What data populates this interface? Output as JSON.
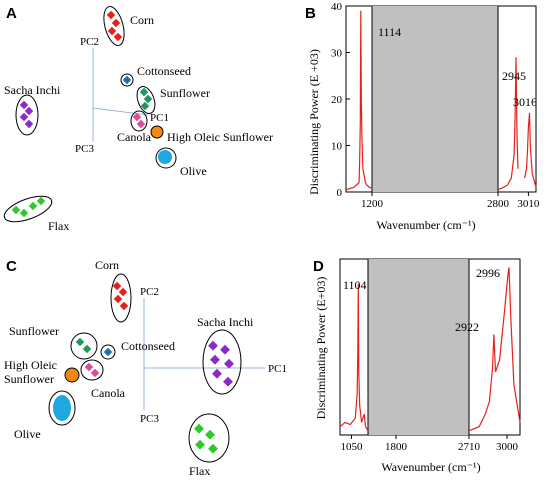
{
  "panels": {
    "A": {
      "letter": "A",
      "axis_labels": {
        "pc1": "PC1",
        "pc2": "PC2",
        "pc3": "PC3"
      },
      "groups": [
        {
          "name": "Corn",
          "color": "#e8201c"
        },
        {
          "name": "Cottonseed",
          "color": "#1a6fb4"
        },
        {
          "name": "Sunflower",
          "color": "#1a9a5a"
        },
        {
          "name": "Canola",
          "color": "#e0489a"
        },
        {
          "name": "High Oleic Sunflower",
          "color": "#f08a14"
        },
        {
          "name": "Olive",
          "color": "#1fa8e0"
        },
        {
          "name": "Sacha Inchi",
          "color": "#8a2ac8"
        },
        {
          "name": "Flax",
          "color": "#2ec82a"
        }
      ]
    },
    "B": {
      "letter": "B",
      "ylabel": "Discriminating Power (E +03)",
      "xlabel": "Wavenumber (cm⁻¹)",
      "yticks": [
        "0",
        "10",
        "20",
        "30",
        "40"
      ],
      "xticks": [
        "1200",
        "2800",
        "3010"
      ],
      "annotations": [
        "1114",
        "2945",
        "3016"
      ]
    },
    "C": {
      "letter": "C",
      "axis_labels": {
        "pc1": "PC1",
        "pc2": "PC2",
        "pc3": "PC3"
      },
      "groups": [
        {
          "name": "Corn",
          "color": "#e8201c"
        },
        {
          "name": "Sacha Inchi",
          "color": "#8a2ac8"
        },
        {
          "name": "Sunflower",
          "color": "#1a9a5a"
        },
        {
          "name": "Cottonseed",
          "color": "#1a6fb4"
        },
        {
          "name": "High Oleic Sunflower",
          "color": "#f08a14"
        },
        {
          "name": "Canola",
          "color": "#e0489a"
        },
        {
          "name": "Olive",
          "color": "#1fa8e0"
        },
        {
          "name": "Flax",
          "color": "#2ec82a"
        }
      ],
      "multiline_labels": {
        "high_oleic_1": "High Oleic",
        "high_oleic_2": "Sunflower"
      }
    },
    "D": {
      "letter": "D",
      "ylabel": "Discriminating Power (E+03)",
      "xlabel": "Wavenumber (cm⁻¹)",
      "xticks": [
        "1050",
        "1800",
        "2710",
        "3000"
      ],
      "annotations": [
        "1104",
        "2996",
        "2922"
      ]
    }
  },
  "chart_data": [
    {
      "type": "scatter",
      "panel": "A",
      "title": "",
      "series": [
        {
          "name": "Corn",
          "color": "#e8201c",
          "x": [
            0.12,
            0.2,
            0.1
          ],
          "y": [
            1.45,
            1.36,
            1.28
          ]
        },
        {
          "name": "Cottonseed",
          "color": "#1a6fb4",
          "x": [
            0.45
          ],
          "y": [
            0.85
          ]
        },
        {
          "name": "Sunflower",
          "color": "#1a9a5a",
          "x": [
            0.6,
            0.65,
            0.62,
            0.7
          ],
          "y": [
            0.62,
            0.58,
            0.5,
            0.46
          ]
        },
        {
          "name": "Canola",
          "color": "#e0489a",
          "x": [
            0.45,
            0.5,
            0.46
          ],
          "y": [
            0.3,
            0.25,
            0.22
          ]
        },
        {
          "name": "High Oleic Sunflower",
          "color": "#f08a14",
          "x": [
            0.75
          ],
          "y": [
            0.08
          ]
        },
        {
          "name": "Olive",
          "color": "#1fa8e0",
          "x": [
            0.85,
            0.9
          ],
          "y": [
            -0.22,
            -0.25
          ]
        },
        {
          "name": "Sacha Inchi",
          "color": "#8a2ac8",
          "x": [
            -1.5,
            -1.45,
            -1.55,
            -1.48
          ],
          "y": [
            0.45,
            0.4,
            0.35,
            0.3
          ]
        },
        {
          "name": "Flax",
          "color": "#2ec82a",
          "x": [
            -1.4,
            -1.2,
            -1.3,
            -1.0
          ],
          "y": [
            -0.95,
            -0.9,
            -1.0,
            -0.88
          ]
        }
      ]
    },
    {
      "type": "line",
      "panel": "B",
      "xlabel": "Wavenumber (cm⁻¹)",
      "ylabel": "Discriminating Power (E +03)",
      "ylim": [
        0,
        40
      ],
      "segments": [
        {
          "x": [
            1000,
            1060,
            1100,
            1105,
            1110,
            1114,
            1118,
            1122,
            1130,
            1150,
            1160,
            1180,
            1200
          ],
          "y": [
            0.5,
            1,
            2,
            6,
            15,
            39,
            20,
            12,
            5,
            2,
            1.5,
            1,
            0.8
          ]
        },
        {
          "x": [
            2850,
            2880,
            2900,
            2920,
            2935,
            2940,
            2945,
            2950,
            2955
          ],
          "y": [
            0.5,
            1,
            1.5,
            3,
            8,
            16,
            29,
            12,
            5
          ]
        },
        {
          "x": [
            2990,
            3000,
            3005,
            3010,
            3016,
            3020,
            3030,
            3050
          ],
          "y": [
            3,
            5,
            9,
            14,
            17,
            10,
            4,
            1
          ]
        }
      ],
      "shaded_gap": [
        1200,
        2850
      ],
      "peaks": [
        {
          "x": 1114,
          "y": 39
        },
        {
          "x": 2945,
          "y": 29
        },
        {
          "x": 3016,
          "y": 17
        }
      ]
    },
    {
      "type": "scatter",
      "panel": "C",
      "title": "",
      "series": [
        {
          "name": "Corn",
          "color": "#e8201c",
          "x": [
            -0.3,
            -0.22,
            -0.26
          ],
          "y": [
            1.1,
            1.0,
            0.9
          ]
        },
        {
          "name": "Sacha Inchi",
          "color": "#8a2ac8",
          "x": [
            1.1,
            1.2,
            1.15,
            1.25
          ],
          "y": [
            0.3,
            0.2,
            0.1,
            0.0
          ]
        },
        {
          "name": "Sunflower",
          "color": "#1a9a5a",
          "x": [
            -0.9,
            -0.85
          ],
          "y": [
            0.25,
            0.2
          ]
        },
        {
          "name": "Cottonseed",
          "color": "#1a6fb4",
          "x": [
            -0.6
          ],
          "y": [
            0.2
          ]
        },
        {
          "name": "High Oleic Sunflower",
          "color": "#f08a14",
          "x": [
            -1.1
          ],
          "y": [
            0.0
          ]
        },
        {
          "name": "Canola",
          "color": "#e0489a",
          "x": [
            -0.8,
            -0.75
          ],
          "y": [
            0.05,
            0.0
          ]
        },
        {
          "name": "Olive",
          "color": "#1fa8e0",
          "x": [
            -1.2,
            -1.15
          ],
          "y": [
            -0.3,
            -0.35
          ]
        },
        {
          "name": "Flax",
          "color": "#2ec82a",
          "x": [
            1.1,
            1.2,
            1.15
          ],
          "y": [
            -0.7,
            -0.75,
            -0.8
          ]
        }
      ]
    },
    {
      "type": "line",
      "panel": "D",
      "xlabel": "Wavenumber (cm⁻¹)",
      "ylabel": "Discriminating Power (E+03)",
      "segments": [
        {
          "x": [
            960,
            1000,
            1040,
            1080,
            1095,
            1100,
            1104,
            1108,
            1115,
            1130,
            1150,
            1160,
            1180
          ],
          "y": [
            2,
            3,
            2.5,
            4,
            10,
            20,
            36,
            15,
            7,
            3,
            5,
            2,
            1
          ]
        },
        {
          "x": [
            2800,
            2850,
            2880,
            2900,
            2915,
            2922,
            2930,
            2950,
            2975,
            2990,
            2996,
            3005,
            3020,
            3050
          ],
          "y": [
            1,
            2,
            5,
            8,
            16,
            24,
            15,
            18,
            30,
            38,
            40,
            28,
            12,
            3
          ]
        }
      ],
      "shaded_gap": [
        1180,
        2800
      ],
      "peaks": [
        {
          "x": 1104,
          "y": 36
        },
        {
          "x": 2996,
          "y": 40
        },
        {
          "x": 2922,
          "y": 24
        }
      ]
    }
  ]
}
